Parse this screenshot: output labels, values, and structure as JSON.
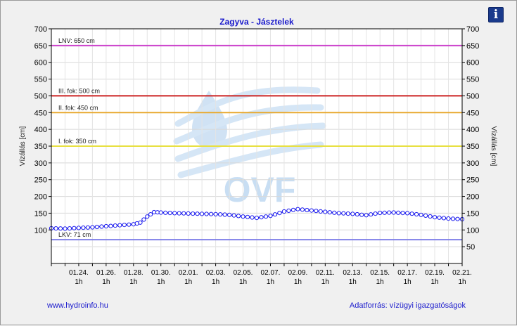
{
  "info_button": {
    "label": "i",
    "icon": "info-icon"
  },
  "footer": {
    "website": "www.hydroinfo.hu",
    "source": "Adatforrás: vízügyi igazgatóságok"
  },
  "watermark": {
    "text": "OVF",
    "icon": "water-drop-logo"
  },
  "colors": {
    "series": "#1a1aee",
    "lnv": "#cc44cc",
    "fok3": "#cc2222",
    "fok2": "#e8a930",
    "fok1": "#e8e040",
    "lkv": "#8080e8"
  },
  "chart_data": {
    "type": "line",
    "title": "Zagyva - Jásztelek",
    "ylabel": "Vízállás [cm]",
    "ylabel_right": "Vízállás [cm]",
    "xlabel": "",
    "ylim": [
      0,
      700
    ],
    "y_ticks": [
      100,
      150,
      200,
      250,
      300,
      350,
      400,
      450,
      500,
      550,
      600,
      650,
      700
    ],
    "y_ticks_right": [
      50,
      100,
      150,
      200,
      250,
      300,
      350,
      400,
      450,
      500,
      550,
      600,
      650,
      700
    ],
    "xlim_days": [
      "01.22",
      "02.21"
    ],
    "x_ticks": [
      {
        "date": "01.24.",
        "time": "1h"
      },
      {
        "date": "01.26.",
        "time": "1h"
      },
      {
        "date": "01.28.",
        "time": "1h"
      },
      {
        "date": "01.30.",
        "time": "1h"
      },
      {
        "date": "02.01.",
        "time": "1h"
      },
      {
        "date": "02.03.",
        "time": "1h"
      },
      {
        "date": "02.05.",
        "time": "1h"
      },
      {
        "date": "02.07.",
        "time": "1h"
      },
      {
        "date": "02.09.",
        "time": "1h"
      },
      {
        "date": "02.11.",
        "time": "1h"
      },
      {
        "date": "02.13.",
        "time": "1h"
      },
      {
        "date": "02.15.",
        "time": "1h"
      },
      {
        "date": "02.17.",
        "time": "1h"
      },
      {
        "date": "02.19.",
        "time": "1h"
      },
      {
        "date": "02.21.",
        "time": "1h"
      }
    ],
    "grid": true,
    "thresholds": [
      {
        "label": "LNV: 650 cm",
        "value": 650,
        "color_key": "lnv"
      },
      {
        "label": "III. fok: 500 cm",
        "value": 500,
        "color_key": "fok3"
      },
      {
        "label": "II. fok: 450 cm",
        "value": 450,
        "color_key": "fok2"
      },
      {
        "label": "I. fok: 350 cm",
        "value": 350,
        "color_key": "fok1"
      },
      {
        "label": "LKV: 71 cm",
        "value": 71,
        "color_key": "lkv"
      }
    ],
    "series": [
      {
        "x": [
          "01.22",
          "01.23",
          "01.24",
          "01.25",
          "01.26",
          "01.27",
          "01.28",
          "01.28 12h",
          "01.29",
          "01.29 12h",
          "01.30",
          "01.31",
          "02.01",
          "02.02",
          "02.03",
          "02.04",
          "02.05",
          "02.06",
          "02.07",
          "02.08",
          "02.09",
          "02.10",
          "02.11",
          "02.12",
          "02.13",
          "02.14",
          "02.15",
          "02.16",
          "02.17",
          "02.18",
          "02.19",
          "02.20",
          "02.21"
        ],
        "values": [
          105,
          104,
          106,
          108,
          111,
          114,
          117,
          122,
          140,
          153,
          152,
          150,
          149,
          148,
          147,
          145,
          140,
          136,
          142,
          155,
          162,
          158,
          154,
          150,
          148,
          144,
          151,
          152,
          150,
          145,
          138,
          134,
          132
        ]
      }
    ]
  }
}
